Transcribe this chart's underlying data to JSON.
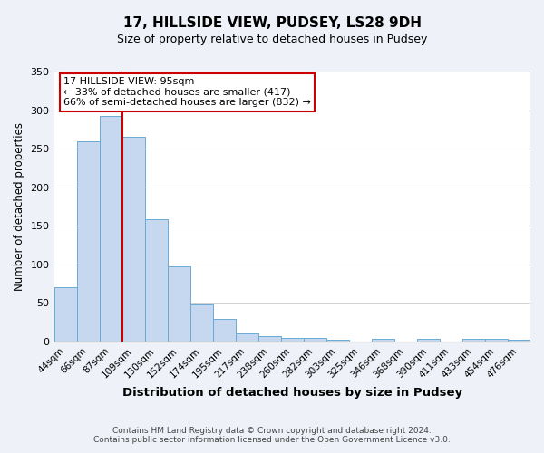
{
  "title": "17, HILLSIDE VIEW, PUDSEY, LS28 9DH",
  "subtitle": "Size of property relative to detached houses in Pudsey",
  "xlabel": "Distribution of detached houses by size in Pudsey",
  "ylabel": "Number of detached properties",
  "bar_labels": [
    "44sqm",
    "66sqm",
    "87sqm",
    "109sqm",
    "130sqm",
    "152sqm",
    "174sqm",
    "195sqm",
    "217sqm",
    "238sqm",
    "260sqm",
    "282sqm",
    "303sqm",
    "325sqm",
    "346sqm",
    "368sqm",
    "390sqm",
    "411sqm",
    "433sqm",
    "454sqm",
    "476sqm"
  ],
  "bar_values": [
    70,
    260,
    293,
    265,
    158,
    97,
    48,
    29,
    10,
    7,
    5,
    5,
    2,
    0,
    3,
    0,
    3,
    0,
    3,
    3,
    2
  ],
  "bar_color": "#c5d8ef",
  "bar_edge_color": "#6aaad4",
  "ylim": [
    0,
    350
  ],
  "yticks": [
    0,
    50,
    100,
    150,
    200,
    250,
    300,
    350
  ],
  "vline_bar_index": 2,
  "annotation_title": "17 HILLSIDE VIEW: 95sqm",
  "annotation_line1": "← 33% of detached houses are smaller (417)",
  "annotation_line2": "66% of semi-detached houses are larger (832) →",
  "annotation_box_color": "#ffffff",
  "annotation_box_edge_color": "#cc0000",
  "vline_color": "#cc0000",
  "footer_line1": "Contains HM Land Registry data © Crown copyright and database right 2024.",
  "footer_line2": "Contains public sector information licensed under the Open Government Licence v3.0.",
  "background_color": "#eef2f8",
  "plot_bg_color": "#ffffff",
  "grid_color": "#d0d0d0",
  "title_fontsize": 11,
  "subtitle_fontsize": 9
}
